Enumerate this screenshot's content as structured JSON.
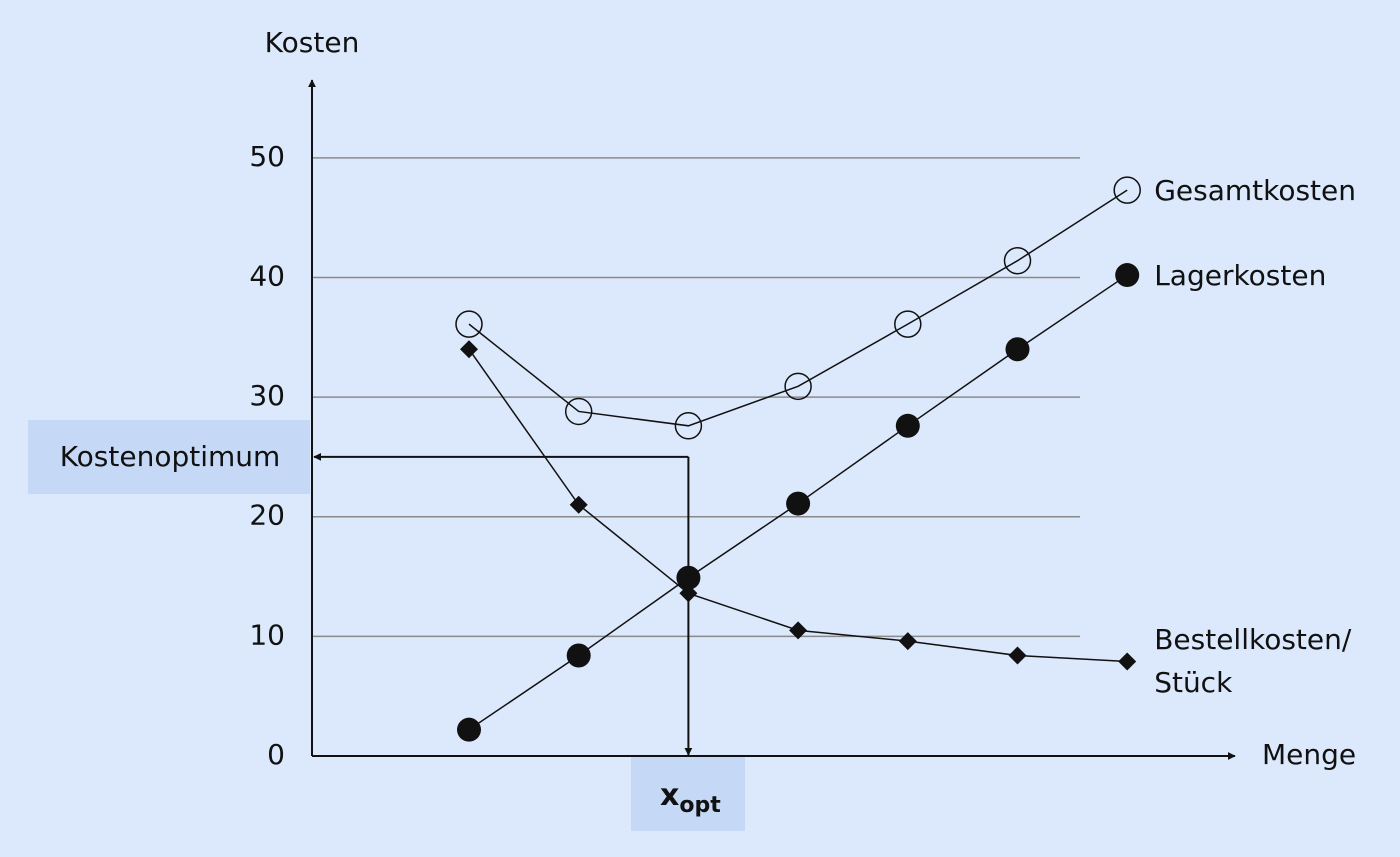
{
  "chart_data": {
    "type": "line",
    "x_label": "Menge",
    "y_label": "Kosten",
    "categories": [
      null,
      null,
      null,
      null,
      null,
      null,
      null
    ],
    "series": [
      {
        "name": "Gesamtkosten",
        "color": "#111111",
        "marker": "open-circle",
        "values": [
          36.1,
          28.8,
          27.6,
          30.9,
          36.1,
          41.4,
          47.3
        ]
      },
      {
        "name": "Lagerkosten",
        "color": "#111111",
        "marker": "filled-circle",
        "values": [
          2.2,
          8.4,
          14.9,
          21.1,
          27.6,
          34.0,
          40.2
        ]
      },
      {
        "name": "Bestellkosten/ Stück",
        "color": "#111111",
        "marker": "diamond",
        "values": [
          34.0,
          21.0,
          13.6,
          10.5,
          9.6,
          8.4,
          7.9
        ]
      }
    ],
    "ylim": [
      0,
      55
    ],
    "yticks": [
      0,
      10,
      20,
      30,
      40,
      50
    ],
    "grid": true,
    "optimum_y_label": "Kostenoptimum",
    "optimum_y": 25,
    "optimum_x_label": "x",
    "optimum_x_subscript": "opt"
  }
}
